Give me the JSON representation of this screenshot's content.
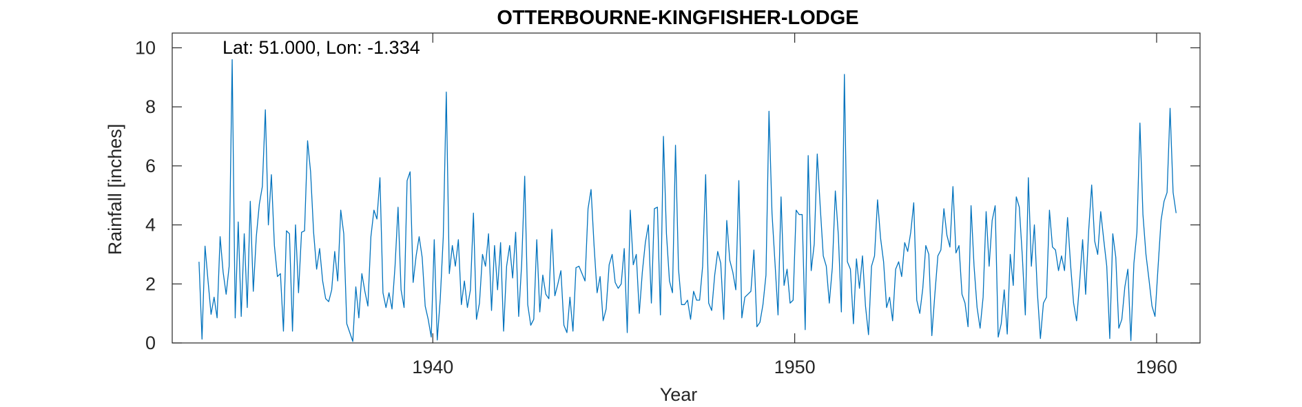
{
  "chart_data": {
    "type": "line",
    "title": "OTTERBOURNE-KINGFISHER-LODGE",
    "annotation": "Lat: 51.000, Lon: -1.334",
    "xlabel": "Year",
    "ylabel": "Rainfall [inches]",
    "xlim": [
      1932.8,
      1961.2
    ],
    "ylim": [
      0,
      10.5
    ],
    "xticks": [
      1940,
      1950,
      1960
    ],
    "yticks": [
      0,
      2,
      4,
      6,
      8,
      10
    ],
    "grid": false,
    "line_color": "#0072BD",
    "series": [
      {
        "x_start": 1933.54,
        "x_step": 0.08333,
        "values": [
          2.75,
          0.13,
          3.28,
          2.1,
          0.97,
          1.55,
          0.85,
          3.6,
          2.4,
          1.65,
          2.6,
          9.6,
          0.85,
          4.1,
          0.9,
          3.7,
          1.2,
          4.8,
          1.75,
          3.6,
          4.7,
          5.3,
          7.9,
          4.0,
          5.7,
          3.3,
          2.25,
          2.35,
          0.4,
          3.8,
          3.7,
          0.4,
          4.0,
          1.7,
          3.75,
          3.8,
          6.85,
          5.8,
          3.75,
          2.5,
          3.2,
          2.1,
          1.5,
          1.4,
          1.8,
          3.1,
          2.1,
          4.5,
          3.7,
          0.65,
          0.35,
          0.05,
          1.9,
          0.85,
          2.35,
          1.75,
          1.25,
          3.6,
          4.5,
          4.2,
          5.6,
          1.7,
          1.2,
          1.7,
          1.15,
          2.6,
          4.6,
          1.8,
          1.2,
          5.5,
          5.8,
          2.05,
          2.95,
          3.6,
          2.9,
          1.25,
          0.8,
          0.2,
          3.5,
          0.1,
          1.5,
          3.6,
          8.5,
          2.35,
          3.3,
          2.6,
          3.5,
          1.3,
          2.1,
          1.2,
          1.8,
          4.4,
          0.8,
          1.35,
          3.0,
          2.6,
          3.7,
          1.1,
          3.3,
          1.8,
          3.4,
          0.4,
          2.6,
          3.3,
          2.2,
          3.75,
          0.9,
          2.7,
          5.65,
          1.3,
          0.6,
          0.8,
          3.5,
          1.05,
          2.3,
          1.65,
          1.5,
          3.85,
          1.6,
          2.0,
          2.45,
          0.6,
          0.35,
          1.55,
          0.4,
          2.55,
          2.6,
          2.35,
          2.1,
          4.55,
          5.2,
          3.3,
          1.7,
          2.25,
          0.75,
          1.15,
          2.65,
          3.0,
          2.05,
          1.85,
          2.0,
          3.2,
          0.35,
          4.5,
          2.65,
          3.0,
          1.0,
          2.4,
          3.4,
          4.0,
          1.35,
          4.55,
          4.6,
          0.95,
          7.0,
          3.7,
          2.1,
          1.7,
          6.7,
          2.5,
          1.3,
          1.3,
          1.45,
          0.8,
          1.75,
          1.45,
          1.45,
          2.6,
          5.7,
          1.35,
          1.1,
          2.3,
          3.1,
          2.7,
          0.8,
          4.15,
          2.8,
          2.4,
          1.8,
          5.5,
          0.85,
          1.55,
          1.65,
          1.75,
          3.15,
          0.55,
          0.7,
          1.3,
          2.3,
          7.85,
          4.4,
          2.7,
          0.95,
          4.95,
          1.95,
          2.5,
          1.35,
          1.45,
          4.5,
          4.35,
          4.35,
          0.45,
          6.35,
          2.45,
          3.35,
          6.4,
          4.6,
          2.95,
          2.6,
          1.35,
          2.55,
          5.15,
          3.65,
          1.05,
          9.1,
          2.75,
          2.5,
          0.65,
          2.85,
          1.85,
          2.95,
          1.25,
          0.28,
          2.6,
          2.95,
          4.85,
          3.55,
          2.75,
          1.2,
          1.55,
          0.75,
          2.5,
          2.75,
          2.25,
          3.4,
          3.1,
          3.75,
          4.75,
          1.45,
          1.0,
          1.85,
          3.3,
          3.0,
          0.25,
          1.65,
          2.95,
          3.15,
          4.55,
          3.65,
          3.25,
          5.3,
          3.05,
          3.3,
          1.65,
          1.35,
          0.55,
          4.65,
          2.6,
          1.2,
          0.5,
          1.55,
          4.45,
          2.6,
          4.15,
          4.65,
          0.2,
          0.65,
          1.8,
          0.3,
          3.0,
          1.95,
          4.95,
          4.6,
          2.95,
          0.95,
          5.6,
          2.6,
          4.0,
          1.7,
          0.15,
          1.35,
          1.55,
          4.5,
          3.25,
          3.15,
          2.45,
          2.95,
          2.45,
          4.25,
          2.65,
          1.35,
          0.75,
          2.05,
          3.5,
          1.65,
          3.8,
          5.35,
          3.45,
          3.0,
          4.45,
          3.5,
          2.6,
          0.15,
          3.7,
          2.9,
          0.5,
          0.8,
          1.9,
          2.5,
          0.08,
          2.7,
          3.75,
          7.45,
          4.35,
          3.0,
          2.15,
          1.25,
          0.9,
          2.55,
          4.15,
          4.8,
          5.1,
          7.95,
          5.1,
          4.4
        ]
      }
    ]
  }
}
